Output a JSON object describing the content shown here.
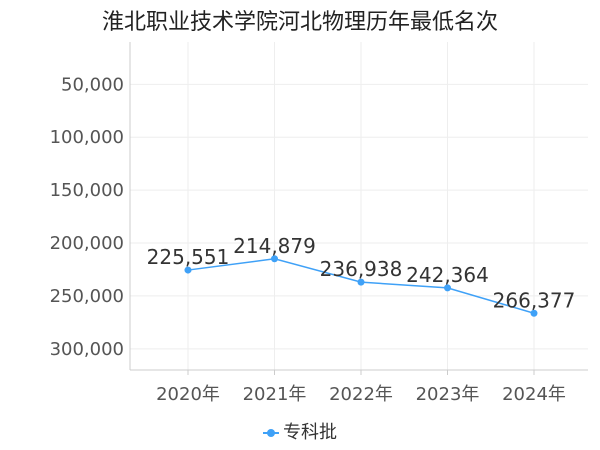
{
  "chart_data": {
    "type": "line",
    "title": "淮北职业技术学院河北物理历年最低名次",
    "x": [
      "2020年",
      "2021年",
      "2022年",
      "2023年",
      "2024年"
    ],
    "series": [
      {
        "name": "专科批",
        "values": [
          225551,
          214879,
          236938,
          242364,
          266377
        ],
        "labels": [
          "225,551",
          "214,879",
          "236,938",
          "242,364",
          "266,377"
        ]
      }
    ],
    "y_ticks": [
      50000,
      100000,
      150000,
      200000,
      250000,
      300000
    ],
    "y_tick_labels": [
      "50,000",
      "100,000",
      "150,000",
      "200,000",
      "250,000",
      "300,000"
    ],
    "ylim": [
      10000,
      320000
    ],
    "y_inverted": true,
    "grid": true,
    "legend_position": "bottom-center",
    "colors": {
      "series": "#3fa1f7",
      "axis": "#cccccc",
      "grid": "#eeeeee"
    }
  }
}
